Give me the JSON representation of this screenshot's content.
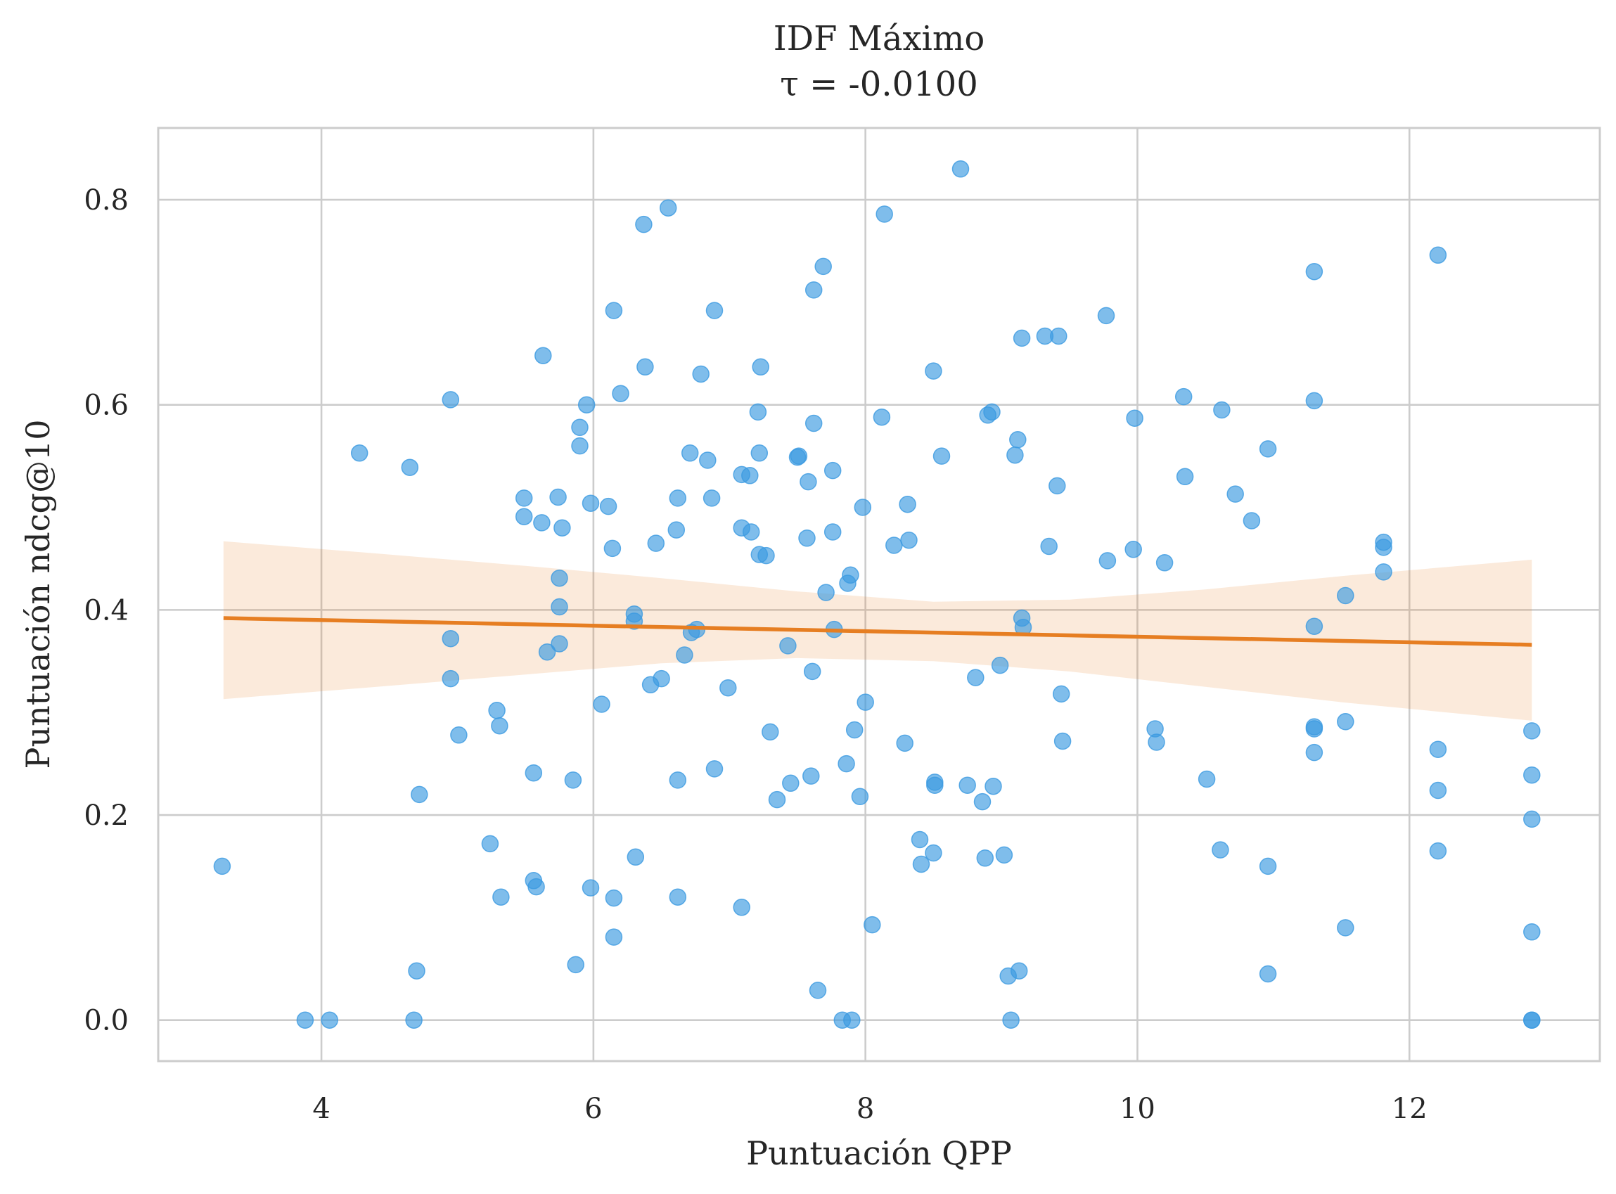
{
  "chart_data": {
    "type": "scatter",
    "title": "IDF Máximo",
    "subtitle": "τ = -0.0100",
    "xlabel": "Puntuación QPP",
    "ylabel": "Puntuación ndcg@10",
    "xlim": [
      2.8,
      13.4
    ],
    "ylim": [
      -0.04,
      0.87
    ],
    "x_ticks": [
      4,
      6,
      8,
      10,
      12
    ],
    "y_ticks": [
      0.0,
      0.2,
      0.4,
      0.6,
      0.8
    ],
    "x_tick_labels": [
      "4",
      "6",
      "8",
      "10",
      "12"
    ],
    "y_tick_labels": [
      "0.0",
      "0.2",
      "0.4",
      "0.6",
      "0.8"
    ],
    "grid": true,
    "colors": {
      "points": "#3b9ae1",
      "regression": "#e67e22",
      "band": "#fbe5d6",
      "grid": "#cccccc"
    },
    "regression": {
      "x": [
        3.28,
        12.9
      ],
      "y": [
        0.392,
        0.366
      ],
      "ci_x": [
        3.28,
        4.5,
        5.5,
        6.5,
        7.5,
        8.5,
        9.5,
        10.5,
        11.5,
        12.9
      ],
      "ci_upper": [
        0.467,
        0.454,
        0.443,
        0.431,
        0.418,
        0.408,
        0.41,
        0.42,
        0.433,
        0.449
      ],
      "ci_lower": [
        0.313,
        0.326,
        0.337,
        0.348,
        0.353,
        0.35,
        0.34,
        0.325,
        0.31,
        0.292
      ]
    },
    "points": [
      [
        3.27,
        0.15
      ],
      [
        3.88,
        0.0
      ],
      [
        4.06,
        0.0
      ],
      [
        4.28,
        0.553
      ],
      [
        4.65,
        0.539
      ],
      [
        4.68,
        0.0
      ],
      [
        4.7,
        0.048
      ],
      [
        4.72,
        0.22
      ],
      [
        4.95,
        0.605
      ],
      [
        4.95,
        0.372
      ],
      [
        4.95,
        0.333
      ],
      [
        5.01,
        0.278
      ],
      [
        5.24,
        0.172
      ],
      [
        5.29,
        0.302
      ],
      [
        5.31,
        0.287
      ],
      [
        5.32,
        0.12
      ],
      [
        5.49,
        0.509
      ],
      [
        5.49,
        0.491
      ],
      [
        5.56,
        0.241
      ],
      [
        5.56,
        0.136
      ],
      [
        5.58,
        0.13
      ],
      [
        5.62,
        0.485
      ],
      [
        5.63,
        0.648
      ],
      [
        5.66,
        0.359
      ],
      [
        5.74,
        0.51
      ],
      [
        5.75,
        0.431
      ],
      [
        5.75,
        0.403
      ],
      [
        5.75,
        0.367
      ],
      [
        5.77,
        0.48
      ],
      [
        5.85,
        0.234
      ],
      [
        5.87,
        0.054
      ],
      [
        5.9,
        0.578
      ],
      [
        5.9,
        0.56
      ],
      [
        5.95,
        0.6
      ],
      [
        5.98,
        0.504
      ],
      [
        5.98,
        0.129
      ],
      [
        6.06,
        0.308
      ],
      [
        6.11,
        0.501
      ],
      [
        6.14,
        0.46
      ],
      [
        6.15,
        0.692
      ],
      [
        6.15,
        0.119
      ],
      [
        6.15,
        0.081
      ],
      [
        6.2,
        0.611
      ],
      [
        6.3,
        0.396
      ],
      [
        6.3,
        0.389
      ],
      [
        6.31,
        0.159
      ],
      [
        6.37,
        0.776
      ],
      [
        6.38,
        0.637
      ],
      [
        6.42,
        0.327
      ],
      [
        6.46,
        0.465
      ],
      [
        6.5,
        0.333
      ],
      [
        6.55,
        0.792
      ],
      [
        6.61,
        0.478
      ],
      [
        6.62,
        0.509
      ],
      [
        6.62,
        0.234
      ],
      [
        6.62,
        0.12
      ],
      [
        6.67,
        0.356
      ],
      [
        6.71,
        0.553
      ],
      [
        6.72,
        0.378
      ],
      [
        6.76,
        0.381
      ],
      [
        6.79,
        0.63
      ],
      [
        6.84,
        0.546
      ],
      [
        6.87,
        0.509
      ],
      [
        6.89,
        0.692
      ],
      [
        6.89,
        0.245
      ],
      [
        6.99,
        0.324
      ],
      [
        7.09,
        0.532
      ],
      [
        7.09,
        0.48
      ],
      [
        7.09,
        0.11
      ],
      [
        7.15,
        0.531
      ],
      [
        7.16,
        0.476
      ],
      [
        7.21,
        0.593
      ],
      [
        7.22,
        0.454
      ],
      [
        7.22,
        0.553
      ],
      [
        7.23,
        0.637
      ],
      [
        7.27,
        0.453
      ],
      [
        7.3,
        0.281
      ],
      [
        7.35,
        0.215
      ],
      [
        7.43,
        0.365
      ],
      [
        7.45,
        0.231
      ],
      [
        7.5,
        0.549
      ],
      [
        7.51,
        0.55
      ],
      [
        7.57,
        0.47
      ],
      [
        7.58,
        0.525
      ],
      [
        7.6,
        0.238
      ],
      [
        7.61,
        0.34
      ],
      [
        7.62,
        0.582
      ],
      [
        7.62,
        0.712
      ],
      [
        7.65,
        0.029
      ],
      [
        7.69,
        0.735
      ],
      [
        7.71,
        0.417
      ],
      [
        7.76,
        0.536
      ],
      [
        7.76,
        0.476
      ],
      [
        7.77,
        0.381
      ],
      [
        7.83,
        0.0
      ],
      [
        7.86,
        0.25
      ],
      [
        7.87,
        0.426
      ],
      [
        7.89,
        0.434
      ],
      [
        7.9,
        0.0
      ],
      [
        7.92,
        0.283
      ],
      [
        7.96,
        0.218
      ],
      [
        7.98,
        0.5
      ],
      [
        8.0,
        0.31
      ],
      [
        8.05,
        0.093
      ],
      [
        8.12,
        0.588
      ],
      [
        8.14,
        0.786
      ],
      [
        8.21,
        0.463
      ],
      [
        8.29,
        0.27
      ],
      [
        8.31,
        0.503
      ],
      [
        8.32,
        0.468
      ],
      [
        8.4,
        0.176
      ],
      [
        8.41,
        0.152
      ],
      [
        8.5,
        0.163
      ],
      [
        8.5,
        0.633
      ],
      [
        8.51,
        0.232
      ],
      [
        8.51,
        0.229
      ],
      [
        8.56,
        0.55
      ],
      [
        8.7,
        0.83
      ],
      [
        8.75,
        0.229
      ],
      [
        8.81,
        0.334
      ],
      [
        8.86,
        0.213
      ],
      [
        8.88,
        0.158
      ],
      [
        8.9,
        0.59
      ],
      [
        8.93,
        0.593
      ],
      [
        8.94,
        0.228
      ],
      [
        8.99,
        0.346
      ],
      [
        9.02,
        0.161
      ],
      [
        9.05,
        0.043
      ],
      [
        9.07,
        0.0
      ],
      [
        9.1,
        0.551
      ],
      [
        9.12,
        0.566
      ],
      [
        9.13,
        0.048
      ],
      [
        9.15,
        0.665
      ],
      [
        9.15,
        0.392
      ],
      [
        9.16,
        0.383
      ],
      [
        9.32,
        0.667
      ],
      [
        9.35,
        0.462
      ],
      [
        9.41,
        0.521
      ],
      [
        9.42,
        0.667
      ],
      [
        9.44,
        0.318
      ],
      [
        9.45,
        0.272
      ],
      [
        9.77,
        0.687
      ],
      [
        9.78,
        0.448
      ],
      [
        9.97,
        0.459
      ],
      [
        9.98,
        0.587
      ],
      [
        10.13,
        0.284
      ],
      [
        10.14,
        0.271
      ],
      [
        10.2,
        0.446
      ],
      [
        10.34,
        0.608
      ],
      [
        10.35,
        0.53
      ],
      [
        10.51,
        0.235
      ],
      [
        10.61,
        0.166
      ],
      [
        10.62,
        0.595
      ],
      [
        10.72,
        0.513
      ],
      [
        10.84,
        0.487
      ],
      [
        10.96,
        0.557
      ],
      [
        10.96,
        0.15
      ],
      [
        10.96,
        0.045
      ],
      [
        11.3,
        0.73
      ],
      [
        11.3,
        0.604
      ],
      [
        11.3,
        0.384
      ],
      [
        11.3,
        0.286
      ],
      [
        11.3,
        0.284
      ],
      [
        11.3,
        0.261
      ],
      [
        11.53,
        0.414
      ],
      [
        11.53,
        0.291
      ],
      [
        11.53,
        0.09
      ],
      [
        11.81,
        0.466
      ],
      [
        11.81,
        0.461
      ],
      [
        11.81,
        0.437
      ],
      [
        12.21,
        0.746
      ],
      [
        12.21,
        0.264
      ],
      [
        12.21,
        0.224
      ],
      [
        12.21,
        0.165
      ],
      [
        12.9,
        0.282
      ],
      [
        12.9,
        0.239
      ],
      [
        12.9,
        0.196
      ],
      [
        12.9,
        0.086
      ],
      [
        12.9,
        0.0
      ],
      [
        12.9,
        0.0
      ]
    ]
  }
}
